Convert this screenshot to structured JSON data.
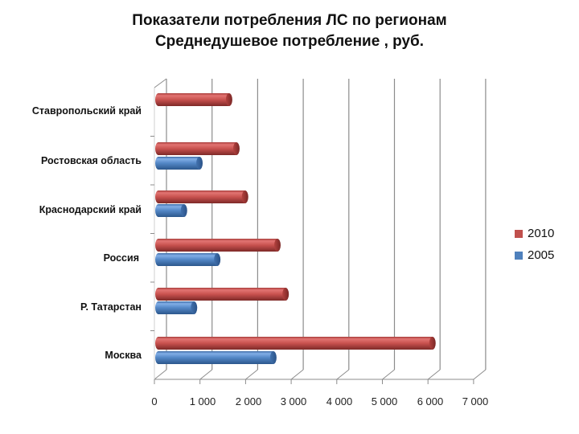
{
  "title": {
    "line1": "Показатели потребления ЛС по регионам",
    "line2": "Среднедушевое потребление , руб."
  },
  "colors": {
    "series_2010": "#c0504d",
    "series_2005": "#4f81bd",
    "grid": "#8c8c8c"
  },
  "legend": [
    {
      "label": "2010",
      "color": "#c0504d"
    },
    {
      "label": "2005",
      "color": "#4f81bd"
    }
  ],
  "x_axis": {
    "ticks": [
      "0",
      "1 000",
      "2 000",
      "3 000",
      "4 000",
      "5 000",
      "6 000",
      "7 000"
    ]
  },
  "categories": [
    "Ставропольский край",
    "Ростовская область",
    "Краснодарский край",
    "Россия",
    "Р. Татарстан",
    "Москва"
  ],
  "chart_data": {
    "type": "bar",
    "orientation": "horizontal",
    "style": "3d-cylinder",
    "title": "Показатели потребления ЛС по регионам — Среднедушевое потребление , руб.",
    "xlabel": "",
    "ylabel": "",
    "xlim": [
      0,
      7000
    ],
    "x_ticks": [
      0,
      1000,
      2000,
      3000,
      4000,
      5000,
      6000,
      7000
    ],
    "grid": true,
    "legend_position": "right",
    "categories": [
      "Ставропольский край",
      "Ростовская область",
      "Краснодарский край",
      "Россия",
      "Р. Татарстан",
      "Москва"
    ],
    "series": [
      {
        "name": "2010",
        "color": "#c0504d",
        "values": [
          1550,
          1710,
          1900,
          2610,
          2790,
          6010
        ]
      },
      {
        "name": "2005",
        "color": "#4f81bd",
        "values": [
          null,
          900,
          560,
          1290,
          780,
          2520
        ]
      }
    ]
  }
}
